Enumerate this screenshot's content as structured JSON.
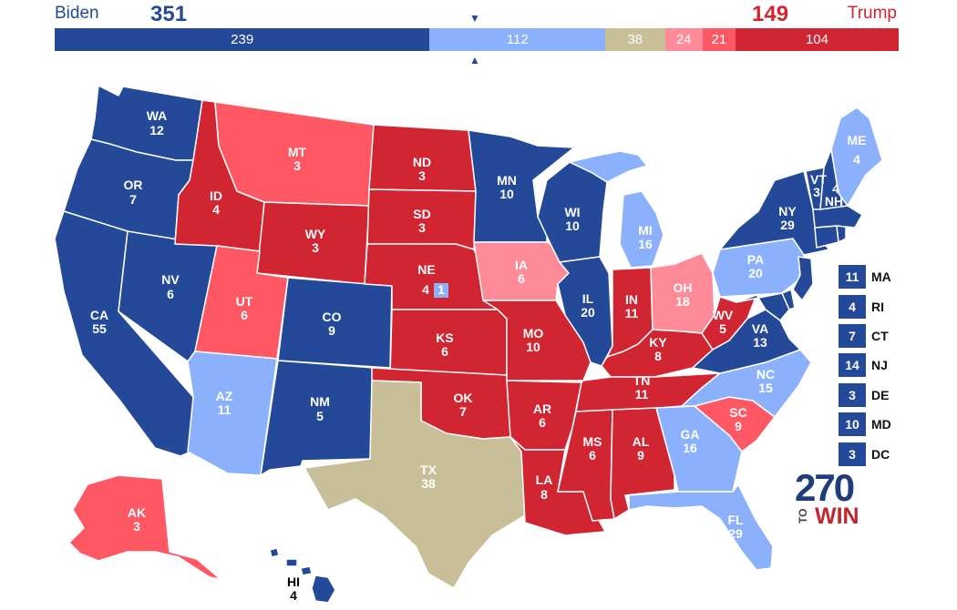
{
  "colors": {
    "safe_dem": "#244999",
    "likely_dem": "#8cb1fc",
    "tossup": "#c8bf98",
    "lean_rep": "#ff8b98",
    "likely_rep": "#ff5865",
    "safe_rep": "#d22532"
  },
  "header": {
    "dem_name": "Biden",
    "dem_total": "351",
    "rep_name": "Trump",
    "rep_total": "149",
    "marker_top": "▼",
    "marker_bottom": "▲"
  },
  "bar": [
    {
      "value": "239",
      "votes": 239,
      "color": "#244999"
    },
    {
      "value": "112",
      "votes": 112,
      "color": "#8cb1fc"
    },
    {
      "value": "38",
      "votes": 38,
      "color": "#c8bf98"
    },
    {
      "value": "24",
      "votes": 24,
      "color": "#ff8b98"
    },
    {
      "value": "21",
      "votes": 21,
      "color": "#ff5865"
    },
    {
      "value": "104",
      "votes": 104,
      "color": "#d22532"
    }
  ],
  "states": {
    "wa": {
      "abbr": "WA",
      "ev": "12"
    },
    "or": {
      "abbr": "OR",
      "ev": "7"
    },
    "ca": {
      "abbr": "CA",
      "ev": "55"
    },
    "nv": {
      "abbr": "NV",
      "ev": "6"
    },
    "id": {
      "abbr": "ID",
      "ev": "4"
    },
    "mt": {
      "abbr": "MT",
      "ev": "3"
    },
    "wy": {
      "abbr": "WY",
      "ev": "3"
    },
    "ut": {
      "abbr": "UT",
      "ev": "6"
    },
    "az": {
      "abbr": "AZ",
      "ev": "11"
    },
    "co": {
      "abbr": "CO",
      "ev": "9"
    },
    "nm": {
      "abbr": "NM",
      "ev": "5"
    },
    "nd": {
      "abbr": "ND",
      "ev": "3"
    },
    "sd": {
      "abbr": "SD",
      "ev": "3"
    },
    "ne": {
      "abbr": "NE",
      "ev": "4",
      "split": "1"
    },
    "ks": {
      "abbr": "KS",
      "ev": "6"
    },
    "ok": {
      "abbr": "OK",
      "ev": "7"
    },
    "tx": {
      "abbr": "TX",
      "ev": "38"
    },
    "mn": {
      "abbr": "MN",
      "ev": "10"
    },
    "ia": {
      "abbr": "IA",
      "ev": "6"
    },
    "mo": {
      "abbr": "MO",
      "ev": "10"
    },
    "ar": {
      "abbr": "AR",
      "ev": "6"
    },
    "la": {
      "abbr": "LA",
      "ev": "8"
    },
    "wi": {
      "abbr": "WI",
      "ev": "10"
    },
    "il": {
      "abbr": "IL",
      "ev": "20"
    },
    "mi": {
      "abbr": "MI",
      "ev": "16"
    },
    "in": {
      "abbr": "IN",
      "ev": "11"
    },
    "oh": {
      "abbr": "OH",
      "ev": "18"
    },
    "ky": {
      "abbr": "KY",
      "ev": "8"
    },
    "tn": {
      "abbr": "TN",
      "ev": "11"
    },
    "ms": {
      "abbr": "MS",
      "ev": "6"
    },
    "al": {
      "abbr": "AL",
      "ev": "9"
    },
    "ga": {
      "abbr": "GA",
      "ev": "16"
    },
    "fl": {
      "abbr": "FL",
      "ev": "29"
    },
    "sc": {
      "abbr": "SC",
      "ev": "9"
    },
    "nc": {
      "abbr": "NC",
      "ev": "15"
    },
    "va": {
      "abbr": "VA",
      "ev": "13"
    },
    "wv": {
      "abbr": "WV",
      "ev": "5"
    },
    "pa": {
      "abbr": "PA",
      "ev": "20"
    },
    "ny": {
      "abbr": "NY",
      "ev": "29"
    },
    "vt": {
      "abbr": "VT",
      "ev": "3"
    },
    "nh": {
      "abbr": "NH",
      "ev": "4"
    },
    "me": {
      "abbr": "ME",
      "ev": "4"
    },
    "ak": {
      "abbr": "AK",
      "ev": "3"
    },
    "hi": {
      "abbr": "HI",
      "ev": "4"
    }
  },
  "small_states": [
    {
      "abbr": "MA",
      "ev": "11"
    },
    {
      "abbr": "RI",
      "ev": "4"
    },
    {
      "abbr": "CT",
      "ev": "7"
    },
    {
      "abbr": "NJ",
      "ev": "14"
    },
    {
      "abbr": "DE",
      "ev": "3"
    },
    {
      "abbr": "MD",
      "ev": "10"
    },
    {
      "abbr": "DC",
      "ev": "3"
    }
  ],
  "logo": {
    "number": "270",
    "to": "TO",
    "win": "WIN"
  }
}
